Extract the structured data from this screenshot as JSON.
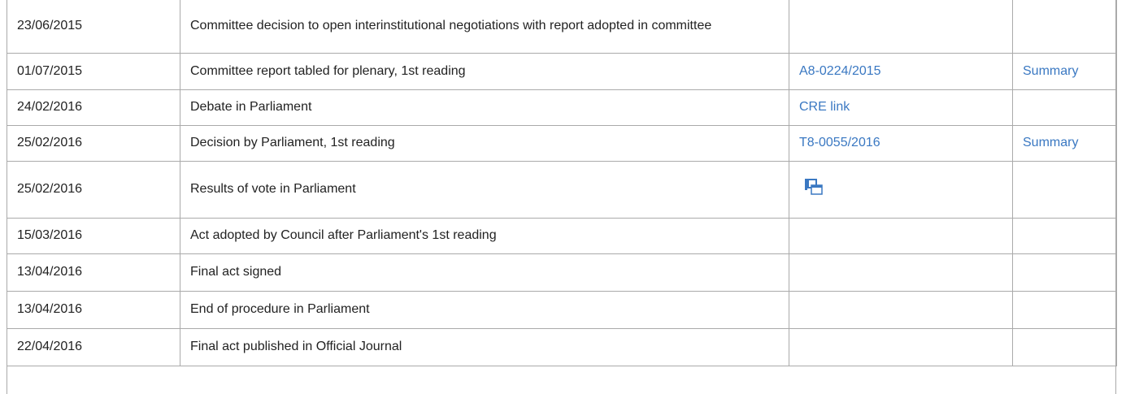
{
  "table": {
    "rows": [
      {
        "date": "23/06/2015",
        "event": "Committee decision to open interinstitutional negotiations with report adopted in committee"
      },
      {
        "date": "01/07/2015",
        "event": "Committee report tabled for plenary, 1st reading",
        "reference": "A8-0224/2015",
        "summary": "Summary"
      },
      {
        "date": "24/02/2016",
        "event": "Debate in Parliament",
        "reference": "CRE link"
      },
      {
        "date": "25/02/2016",
        "event": "Decision by Parliament, 1st reading",
        "reference": "T8-0055/2016",
        "summary": "Summary"
      },
      {
        "date": "25/02/2016",
        "event": "Results of vote in Parliament",
        "icon": true
      },
      {
        "date": "15/03/2016",
        "event": "Act adopted by Council after Parliament's 1st reading"
      },
      {
        "date": "13/04/2016",
        "event": "Final act signed"
      },
      {
        "date": "13/04/2016",
        "event": "End of procedure in Parliament"
      },
      {
        "date": "22/04/2016",
        "event": "Final act published in Official Journal"
      }
    ]
  }
}
